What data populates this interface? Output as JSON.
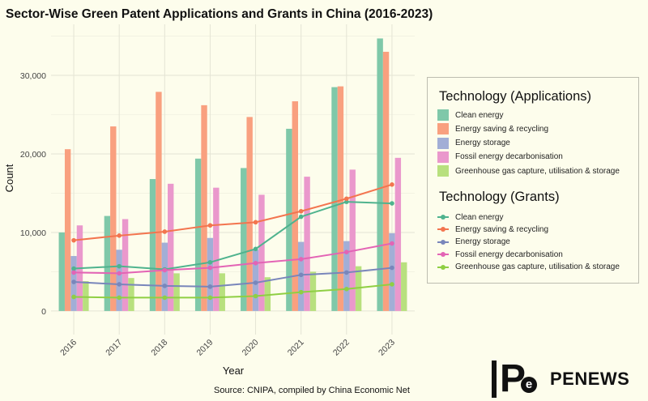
{
  "chart_data": {
    "type": "bar",
    "title": "Sector-Wise Green Patent Applications and Grants in China (2016-2023)",
    "xlabel": "Year",
    "ylabel": "Count",
    "ylim": [
      -3000,
      36500
    ],
    "yticks": [
      0,
      10000,
      20000,
      30000
    ],
    "ytick_labels": [
      "0",
      "10,000",
      "20,000",
      "30,000"
    ],
    "categories": [
      "2016",
      "2017",
      "2018",
      "2019",
      "2020",
      "2021",
      "2022",
      "2023"
    ],
    "bar_legend_title": "Technology (Applications)",
    "line_legend_title": "Technology (Grants)",
    "legend_position": "right",
    "bar_series": [
      {
        "name": "Clean energy",
        "color": "#7fc8a9",
        "values": [
          10000,
          12100,
          16800,
          19400,
          18200,
          23200,
          28500,
          34700
        ]
      },
      {
        "name": "Energy saving & recycling",
        "color": "#f9a07f",
        "values": [
          20600,
          23500,
          27900,
          26200,
          24700,
          26700,
          28600,
          33000
        ]
      },
      {
        "name": "Energy storage",
        "color": "#a2aed6",
        "values": [
          7000,
          7800,
          8700,
          9300,
          7800,
          8800,
          8900,
          9900
        ]
      },
      {
        "name": "Fossil energy decarbonisation",
        "color": "#ea98cc",
        "values": [
          10900,
          11700,
          16200,
          15700,
          14800,
          17100,
          18000,
          19500
        ]
      },
      {
        "name": "Greenhouse gas capture, utilisation & storage",
        "color": "#b8e07e",
        "values": [
          3800,
          4200,
          4800,
          4800,
          4300,
          5000,
          5700,
          6200
        ]
      }
    ],
    "line_series": [
      {
        "name": "Clean energy",
        "color": "#4fb38e",
        "values": [
          5400,
          5700,
          5300,
          6200,
          7900,
          12000,
          13900,
          13700
        ]
      },
      {
        "name": "Energy saving & recycling",
        "color": "#f3754f",
        "values": [
          9000,
          9600,
          10100,
          10900,
          11300,
          12700,
          14300,
          16100
        ]
      },
      {
        "name": "Energy storage",
        "color": "#7986bb",
        "values": [
          3700,
          3400,
          3200,
          3100,
          3600,
          4600,
          4900,
          5500
        ]
      },
      {
        "name": "Fossil energy decarbonisation",
        "color": "#e364b5",
        "values": [
          4900,
          4800,
          5200,
          5500,
          6100,
          6600,
          7500,
          8600
        ]
      },
      {
        "name": "Greenhouse gas capture, utilisation & storage",
        "color": "#8fcf43",
        "values": [
          1800,
          1700,
          1700,
          1700,
          1900,
          2400,
          2800,
          3400
        ]
      }
    ]
  },
  "source": "Source: CNIPA, compiled by China Economic Net",
  "logo": {
    "mark": "P",
    "badge": "e",
    "text": "PENEWS"
  }
}
